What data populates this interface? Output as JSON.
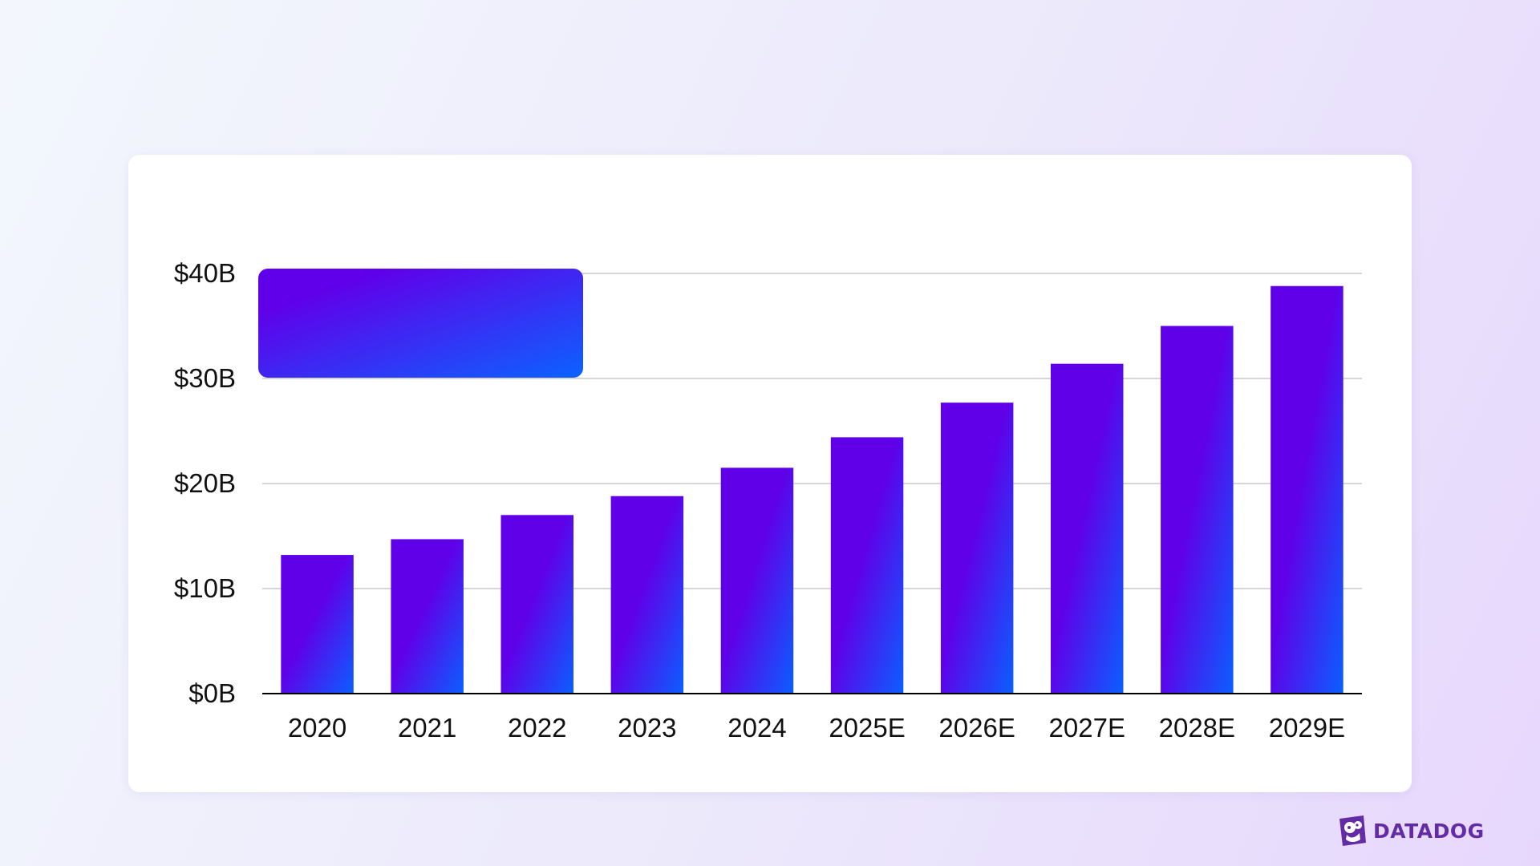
{
  "chart_data": {
    "type": "bar",
    "title": "",
    "xlabel": "",
    "ylabel": "",
    "categories": [
      "2020",
      "2021",
      "2022",
      "2023",
      "2024",
      "2025E",
      "2026E",
      "2027E",
      "2028E",
      "2029E"
    ],
    "values": [
      13.2,
      14.7,
      17.0,
      18.8,
      21.5,
      24.4,
      27.7,
      31.4,
      35.0,
      38.8
    ],
    "ylim": [
      0,
      40
    ],
    "yticks": [
      0,
      10,
      20,
      30,
      40
    ],
    "ytick_labels": [
      "$0B",
      "$10B",
      "$20B",
      "$30B",
      "$40B"
    ],
    "grid": "horizontal",
    "legend": "top-left",
    "colors": {
      "bar_top": "#5f00e9",
      "bar_bottom": "#0a5fff",
      "legend_top": "#6000ea",
      "legend_bottom": "#0b62ff",
      "gridline": "#c8c8c8",
      "axis": "#000000"
    }
  },
  "brand": {
    "name": "DATADOG",
    "icon": "datadog-logo-icon"
  }
}
